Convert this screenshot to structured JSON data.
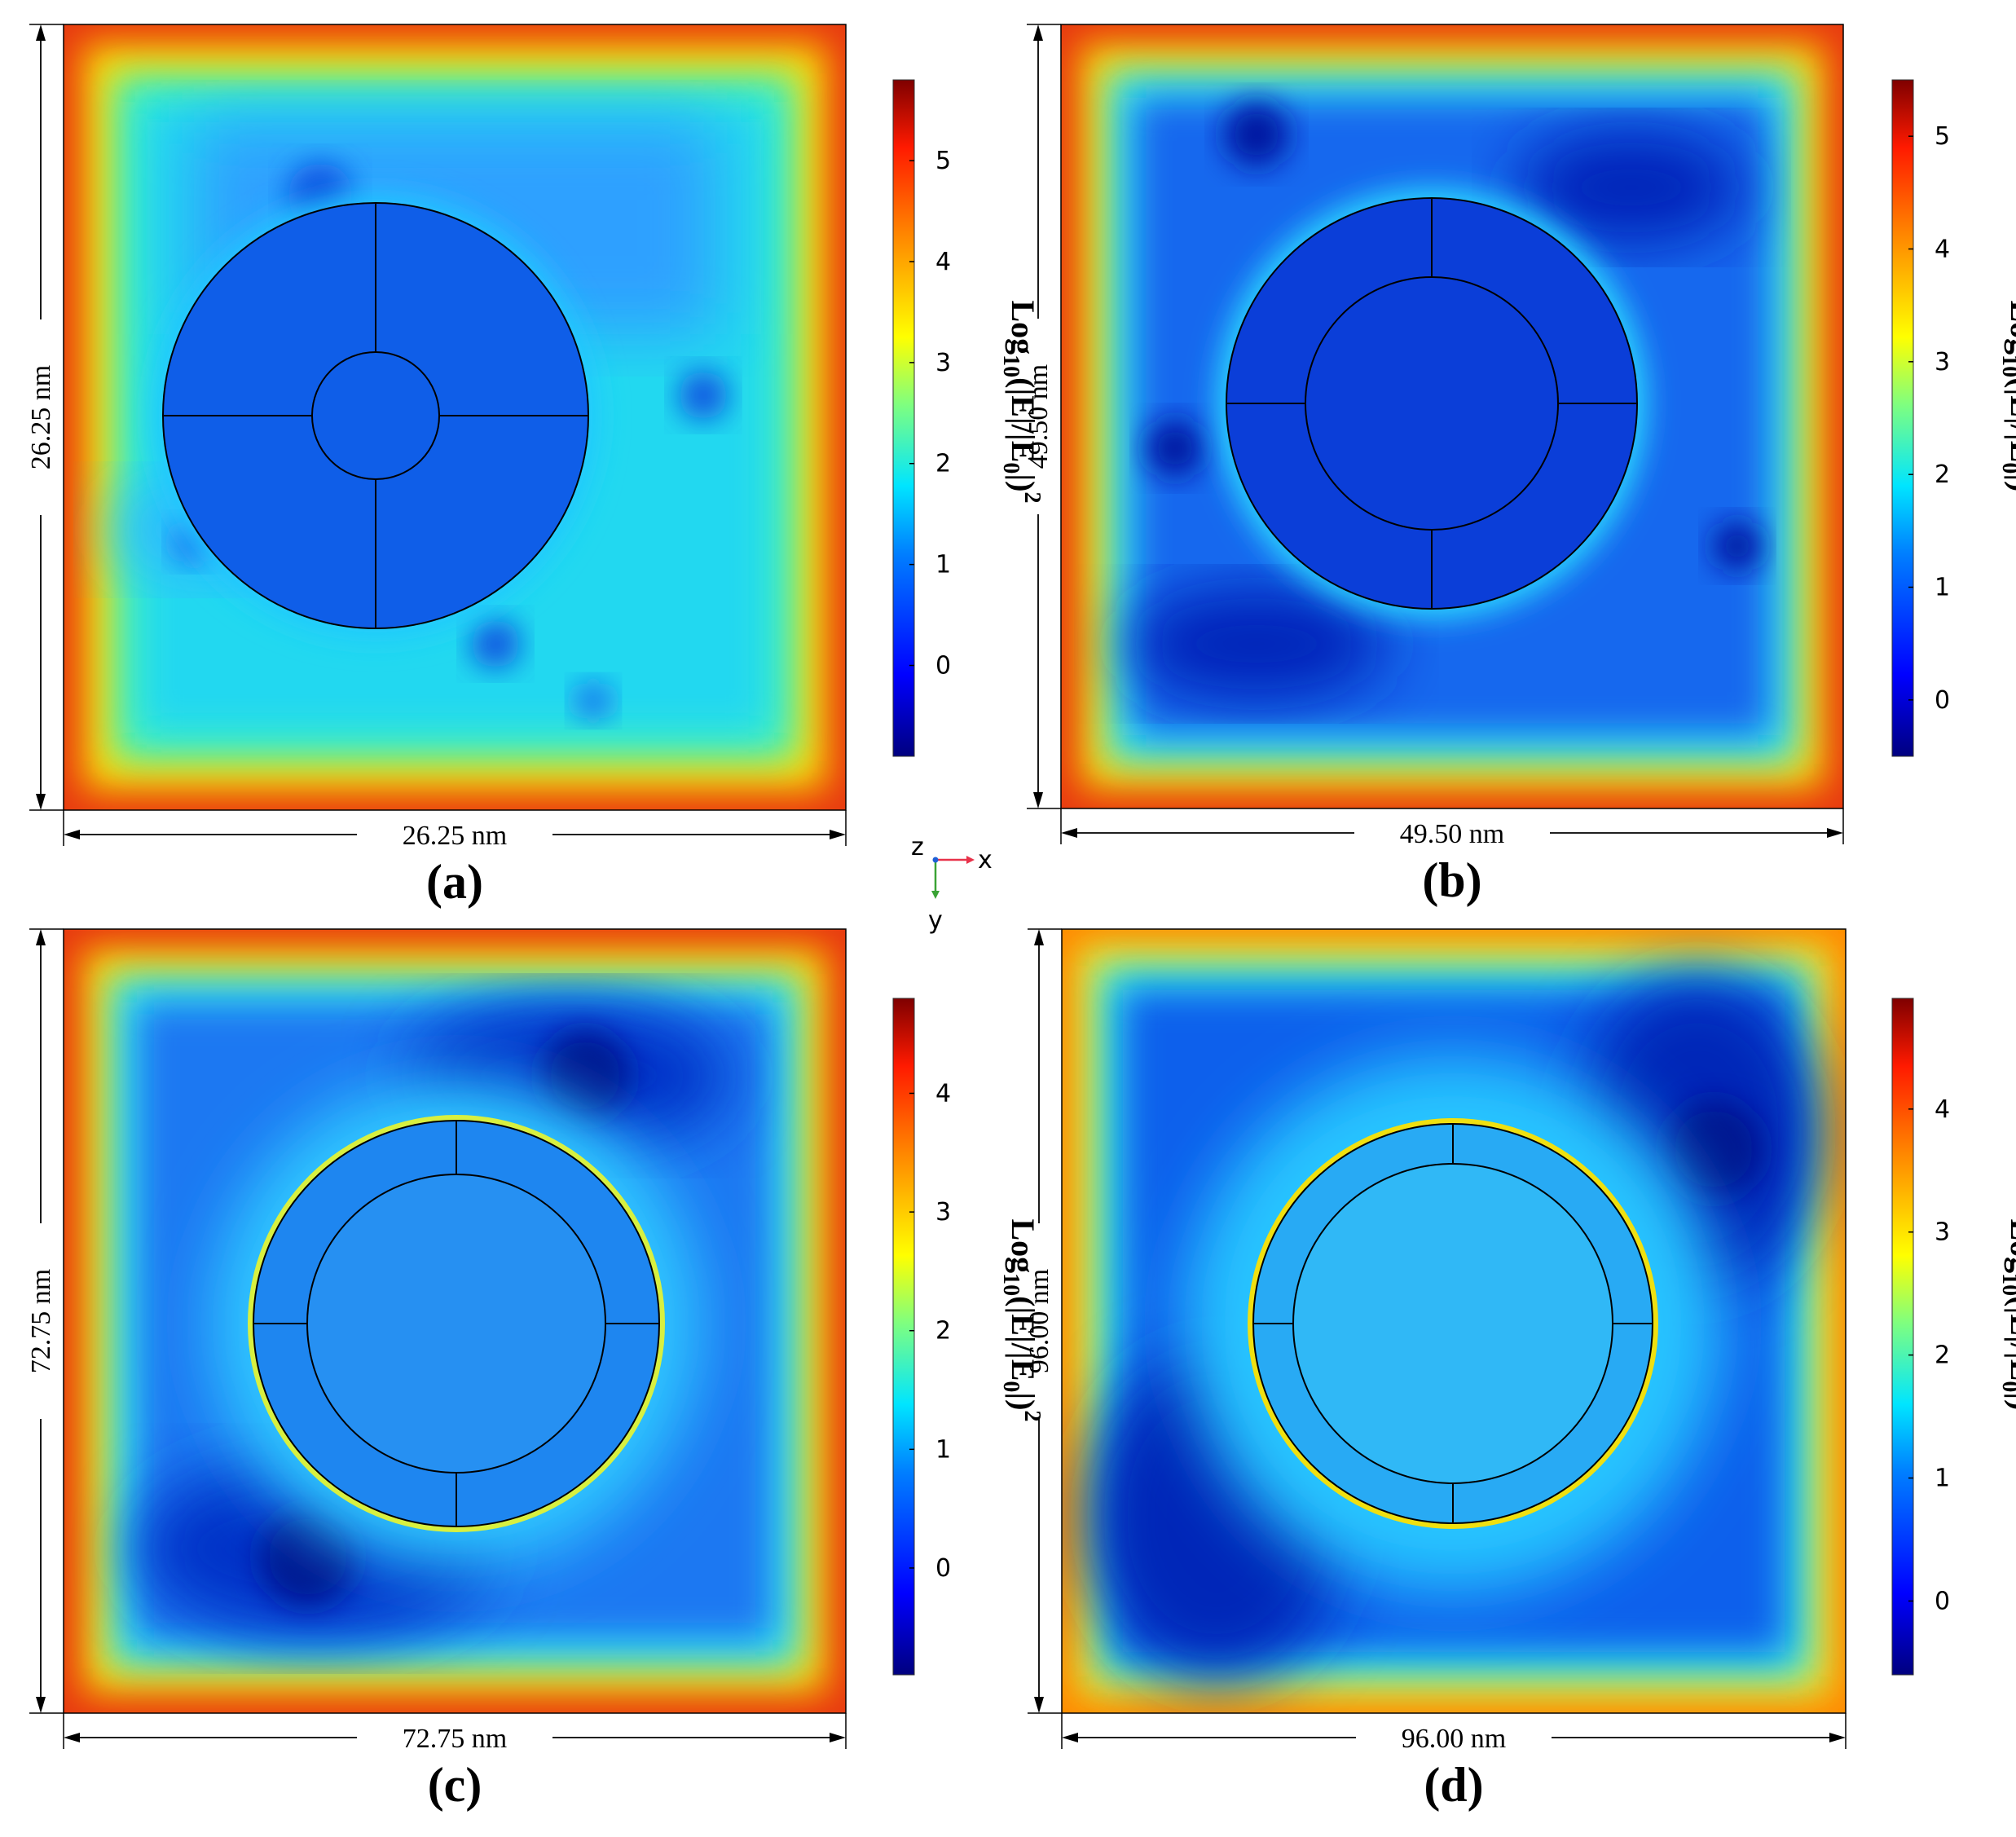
{
  "figure": {
    "panels": [
      {
        "id": "a",
        "label": "(a)",
        "width_label": "26.25 nm",
        "height_label": "26.25 nm",
        "colorbar_ticks": [
          "0",
          "1",
          "2",
          "3",
          "4",
          "5"
        ],
        "colorbar_min": -0.9,
        "colorbar_max": 5.8,
        "field_level": 0.22,
        "geometry": "core-cross"
      },
      {
        "id": "b",
        "label": "(b)",
        "width_label": "49.50 nm",
        "height_label": "49.50 nm",
        "colorbar_ticks": [
          "0",
          "1",
          "2",
          "3",
          "4",
          "5"
        ],
        "colorbar_min": -0.5,
        "colorbar_max": 5.5,
        "field_level": 0.1,
        "geometry": "core-shell"
      },
      {
        "id": "c",
        "label": "(c)",
        "width_label": "72.75 nm",
        "height_label": "72.75 nm",
        "colorbar_ticks": [
          "0",
          "1",
          "2",
          "3",
          "4"
        ],
        "colorbar_min": -0.9,
        "colorbar_max": 4.8,
        "field_level": 0.25,
        "geometry": "core-shell"
      },
      {
        "id": "d",
        "label": "(d)",
        "width_label": "96.00 nm",
        "height_label": "96.00 nm",
        "colorbar_ticks": [
          "0",
          "1",
          "2",
          "3",
          "4"
        ],
        "colorbar_min": -0.6,
        "colorbar_max": 4.9,
        "field_level": 0.32,
        "geometry": "core-shell"
      }
    ],
    "colorbar_title": {
      "log": "Log",
      "sub": "10",
      "body": "(|E|/|E",
      "sub2": "0",
      "close": "|)",
      "sup": "2"
    },
    "axes": {
      "z": "z",
      "x": "x",
      "y": "y",
      "x_color": "#e8324a",
      "y_color": "#3aa335",
      "z_color": "#1e5fd6"
    }
  }
}
